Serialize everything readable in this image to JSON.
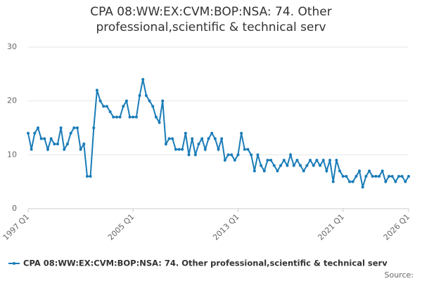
{
  "chart_data": {
    "type": "line",
    "title": "CPA 08:WW:EX:CVM:BOP:NSA: 74. Other professional,scientific & technical serv",
    "source": "Source:",
    "categories": [
      "1997 Q1",
      null,
      null,
      null,
      null,
      null,
      null,
      null,
      null,
      null,
      null,
      null,
      null,
      null,
      null,
      null,
      null,
      null,
      null,
      null,
      null,
      null,
      null,
      null,
      null,
      null,
      null,
      null,
      null,
      null,
      null,
      null,
      "2005 Q1",
      null,
      null,
      null,
      null,
      null,
      null,
      null,
      null,
      null,
      null,
      null,
      null,
      null,
      null,
      null,
      null,
      null,
      null,
      null,
      null,
      null,
      null,
      null,
      null,
      null,
      null,
      null,
      null,
      null,
      null,
      null,
      "2013 Q1",
      null,
      null,
      null,
      null,
      null,
      null,
      null,
      null,
      null,
      null,
      null,
      null,
      null,
      null,
      null,
      null,
      null,
      null,
      null,
      null,
      null,
      null,
      null,
      null,
      null,
      null,
      null,
      null,
      null,
      null,
      null,
      "2021 Q1",
      null,
      null,
      null,
      null,
      null,
      null,
      null,
      null,
      null,
      null,
      null,
      null,
      null,
      null,
      null,
      null,
      null,
      null,
      null,
      "2026 Q1"
    ],
    "series": [
      {
        "name": "CPA 08:WW:EX:CVM:BOP:NSA: 74. Other professional,scientific & technical serv",
        "color": "#1a7cb8",
        "values": [
          14,
          11,
          14,
          15,
          13,
          13,
          11,
          13,
          12,
          12,
          15,
          11,
          12,
          14,
          15,
          15,
          11,
          12,
          6,
          6,
          15,
          22,
          20,
          19,
          19,
          18,
          17,
          17,
          17,
          19,
          20,
          17,
          17,
          17,
          21,
          24,
          21,
          20,
          19,
          17,
          16,
          20,
          12,
          13,
          13,
          11,
          11,
          11,
          14,
          10,
          13,
          10,
          12,
          13,
          11,
          13,
          14,
          13,
          11,
          13,
          9,
          10,
          10,
          9,
          10,
          14,
          11,
          11,
          10,
          7,
          10,
          8,
          7,
          9,
          9,
          8,
          7,
          8,
          9,
          8,
          10,
          8,
          9,
          8,
          7,
          8,
          9,
          8,
          9,
          8,
          9,
          7,
          9,
          5,
          9,
          7,
          6,
          6,
          5,
          5,
          6,
          7,
          4,
          6,
          7,
          6,
          6,
          6,
          7,
          5,
          6,
          6,
          5,
          6,
          6,
          5,
          6
        ]
      }
    ],
    "ylim": [
      0,
      30
    ],
    "yticks": [
      0,
      10,
      20,
      30
    ],
    "grid": true,
    "legend": "bottom"
  }
}
